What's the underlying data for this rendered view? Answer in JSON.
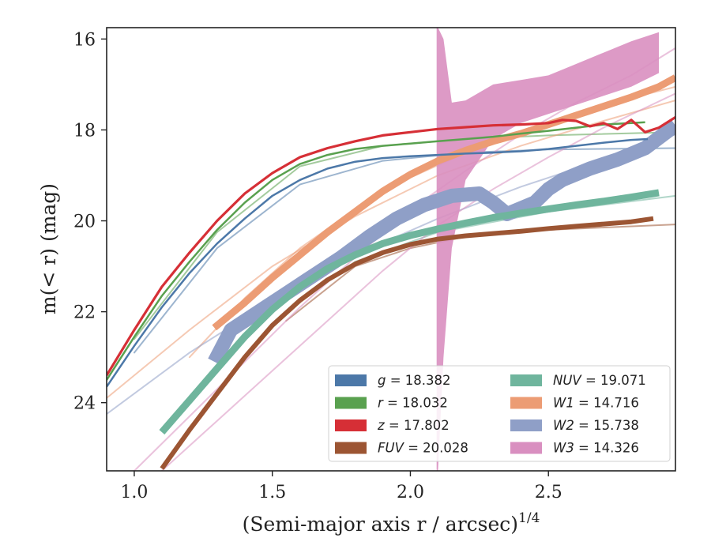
{
  "chart_data": {
    "type": "line",
    "xlabel": "(Semi-major axis r / arcsec)",
    "xlabel_sup": "1/4",
    "ylabel": "m(< r) (mag)",
    "xlim": [
      0.9,
      2.96
    ],
    "ylim": [
      25.5,
      15.75
    ],
    "y_inverted": true,
    "xticks": [
      1.0,
      1.5,
      2.0,
      2.5
    ],
    "xtick_labels": [
      "1.0",
      "1.5",
      "2.0",
      "2.5"
    ],
    "yticks": [
      16,
      18,
      20,
      22,
      24
    ],
    "ytick_labels": [
      "16",
      "18",
      "20",
      "22",
      "24"
    ],
    "grid": false,
    "legend_position": "lower-right",
    "series": [
      {
        "name": "g = 18.382",
        "label_var": "g",
        "label_val": "= 18.382",
        "color": "#4c78a8",
        "total": 18.382,
        "x": [
          0.9,
          1.0,
          1.1,
          1.2,
          1.3,
          1.4,
          1.5,
          1.6,
          1.7,
          1.8,
          1.9,
          2.0,
          2.1,
          2.2,
          2.3,
          2.4,
          2.5,
          2.6,
          2.7,
          2.8,
          2.86
        ],
        "y": [
          23.65,
          22.75,
          21.9,
          21.15,
          20.5,
          19.95,
          19.45,
          19.1,
          18.85,
          18.7,
          18.62,
          18.58,
          18.55,
          18.52,
          18.5,
          18.47,
          18.42,
          18.35,
          18.28,
          18.22,
          18.2
        ],
        "width": 2.5,
        "model": {
          "x": [
            1.0,
            1.3,
            1.6,
            1.9,
            2.2,
            2.5,
            2.96
          ],
          "y": [
            22.9,
            20.6,
            19.2,
            18.68,
            18.5,
            18.43,
            18.4
          ]
        }
      },
      {
        "name": "r = 18.032",
        "label_var": "r",
        "label_val": "= 18.032",
        "color": "#59a14f",
        "total": 18.032,
        "x": [
          0.9,
          1.0,
          1.1,
          1.2,
          1.3,
          1.4,
          1.5,
          1.6,
          1.7,
          1.8,
          1.9,
          2.0,
          2.1,
          2.2,
          2.3,
          2.4,
          2.5,
          2.6,
          2.7,
          2.8,
          2.85
        ],
        "y": [
          23.5,
          22.55,
          21.65,
          20.9,
          20.2,
          19.6,
          19.1,
          18.75,
          18.55,
          18.42,
          18.35,
          18.3,
          18.25,
          18.2,
          18.15,
          18.08,
          18.02,
          17.95,
          17.88,
          17.85,
          17.83
        ],
        "width": 2.5,
        "model": {
          "x": [
            1.0,
            1.3,
            1.6,
            1.9,
            2.2,
            2.5,
            2.96
          ],
          "y": [
            22.6,
            20.25,
            18.8,
            18.35,
            18.2,
            18.12,
            18.05
          ]
        }
      },
      {
        "name": "z = 17.802",
        "label_var": "z",
        "label_val": "= 17.802",
        "color": "#d62f36",
        "total": 17.802,
        "x": [
          0.9,
          1.0,
          1.1,
          1.2,
          1.3,
          1.4,
          1.5,
          1.6,
          1.7,
          1.8,
          1.9,
          2.0,
          2.1,
          2.2,
          2.3,
          2.4,
          2.5,
          2.55,
          2.6,
          2.65,
          2.7,
          2.75,
          2.8,
          2.85,
          2.9,
          2.96
        ],
        "y": [
          23.4,
          22.4,
          21.45,
          20.7,
          20.0,
          19.4,
          18.95,
          18.6,
          18.4,
          18.25,
          18.12,
          18.05,
          17.98,
          17.94,
          17.9,
          17.88,
          17.85,
          17.78,
          17.8,
          17.92,
          17.85,
          17.98,
          17.78,
          18.05,
          17.95,
          17.72
        ],
        "width": 3.2
      },
      {
        "name": "FUV = 20.028",
        "label_var": "FUV",
        "label_val": "= 20.028",
        "color": "#9c5533",
        "total": 20.028,
        "x": [
          1.1,
          1.2,
          1.3,
          1.4,
          1.5,
          1.6,
          1.7,
          1.8,
          1.9,
          2.0,
          2.1,
          2.2,
          2.3,
          2.4,
          2.5,
          2.6,
          2.7,
          2.8,
          2.88
        ],
        "y": [
          25.45,
          24.6,
          23.8,
          23.0,
          22.3,
          21.75,
          21.3,
          20.95,
          20.7,
          20.52,
          20.4,
          20.33,
          20.28,
          20.23,
          20.17,
          20.12,
          20.07,
          20.02,
          19.95
        ],
        "width": 6,
        "model": {
          "x": [
            1.55,
            1.8,
            2.0,
            2.2,
            2.5,
            2.96
          ],
          "y": [
            22.2,
            21.0,
            20.6,
            20.35,
            20.2,
            20.08
          ]
        }
      },
      {
        "name": "NUV = 19.071",
        "label_var": "NUV",
        "label_val": "= 19.071",
        "color": "#6fb59d",
        "total": 19.071,
        "x": [
          1.1,
          1.2,
          1.3,
          1.4,
          1.5,
          1.6,
          1.7,
          1.8,
          1.9,
          2.0,
          2.1,
          2.2,
          2.3,
          2.4,
          2.5,
          2.6,
          2.7,
          2.8,
          2.9
        ],
        "y": [
          24.65,
          23.95,
          23.25,
          22.55,
          21.95,
          21.45,
          21.05,
          20.75,
          20.5,
          20.32,
          20.18,
          20.05,
          19.93,
          19.83,
          19.74,
          19.65,
          19.57,
          19.48,
          19.38
        ],
        "width": 9,
        "model": {
          "x": [
            1.55,
            1.8,
            2.1,
            2.5,
            2.96
          ],
          "y": [
            22.0,
            20.9,
            20.25,
            19.8,
            19.45
          ]
        }
      },
      {
        "name": "W1 = 14.716",
        "label_var": "W1",
        "label_val": "= 14.716",
        "color": "#ec9c74",
        "total": 14.716,
        "x": [
          1.29,
          1.4,
          1.5,
          1.6,
          1.7,
          1.8,
          1.9,
          2.0,
          2.1,
          2.2,
          2.3,
          2.4,
          2.5,
          2.6,
          2.7,
          2.8,
          2.9,
          2.96
        ],
        "y": [
          22.35,
          21.8,
          21.25,
          20.75,
          20.25,
          19.8,
          19.35,
          18.98,
          18.68,
          18.45,
          18.25,
          18.08,
          17.88,
          17.68,
          17.48,
          17.28,
          17.05,
          16.85
        ],
        "width": 9,
        "model": [
          {
            "x": [
              0.9,
              1.2,
              1.5,
              1.8,
              2.1,
              2.4,
              2.7,
              2.96
            ],
            "y": [
              23.9,
              22.4,
              21.0,
              19.9,
              19.0,
              18.35,
              17.8,
              17.35
            ]
          },
          {
            "x": [
              1.2,
              1.4,
              1.6,
              1.8,
              2.0,
              2.2,
              2.4,
              2.6,
              2.8,
              2.96
            ],
            "y": [
              23.0,
              21.7,
              20.6,
              19.75,
              19.05,
              18.5,
              18.05,
              17.65,
              17.3,
              17.05
            ]
          }
        ]
      },
      {
        "name": "W2 = 15.738",
        "label_var": "W2",
        "label_val": "= 15.738",
        "color": "#8f9fc7",
        "total": 15.738,
        "x": [
          1.29,
          1.35,
          1.45,
          1.55,
          1.65,
          1.75,
          1.85,
          1.95,
          2.05,
          2.15,
          2.25,
          2.3,
          2.35,
          2.45,
          2.5,
          2.55,
          2.65,
          2.75,
          2.85,
          2.96
        ],
        "y": [
          23.1,
          22.4,
          22.0,
          21.6,
          21.2,
          20.8,
          20.35,
          19.95,
          19.65,
          19.45,
          19.4,
          19.6,
          19.85,
          19.6,
          19.3,
          19.1,
          18.85,
          18.65,
          18.4,
          17.9
        ],
        "width": 18,
        "model": {
          "x": [
            0.9,
            1.2,
            1.5,
            1.8,
            2.1,
            2.4,
            2.7,
            2.96
          ],
          "y": [
            24.25,
            22.9,
            21.75,
            20.75,
            19.95,
            19.25,
            18.65,
            18.1
          ]
        }
      },
      {
        "name": "W3 = 14.326",
        "label_var": "W3",
        "label_val": "= 14.326",
        "color": "#d98fc0",
        "total": 14.326,
        "x": [
          2.095,
          2.1,
          2.12,
          2.15,
          2.2,
          2.3,
          2.4,
          2.5,
          2.6,
          2.7,
          2.8,
          2.9
        ],
        "y_upper": [
          15.75,
          15.75,
          16.0,
          17.4,
          17.35,
          17.0,
          16.9,
          16.8,
          16.55,
          16.3,
          16.05,
          15.85
        ],
        "y_lower": [
          25.5,
          25.5,
          23.0,
          20.6,
          19.1,
          18.2,
          17.85,
          17.65,
          17.45,
          17.25,
          17.05,
          16.75
        ],
        "model": [
          {
            "x": [
              1.0,
              1.2,
              1.4,
              1.6,
              1.8,
              2.0,
              2.2,
              2.4,
              2.6,
              2.8,
              2.96
            ],
            "y": [
              25.5,
              24.3,
              23.1,
              21.9,
              20.8,
              19.75,
              18.9,
              18.1,
              17.4,
              16.8,
              16.2
            ]
          },
          {
            "x": [
              1.1,
              1.3,
              1.5,
              1.7,
              1.9,
              2.1,
              2.3,
              2.5,
              2.7,
              2.96
            ],
            "y": [
              25.5,
              24.4,
              23.3,
              22.2,
              21.1,
              20.1,
              19.3,
              18.6,
              17.95,
              17.2
            ]
          }
        ]
      }
    ]
  }
}
